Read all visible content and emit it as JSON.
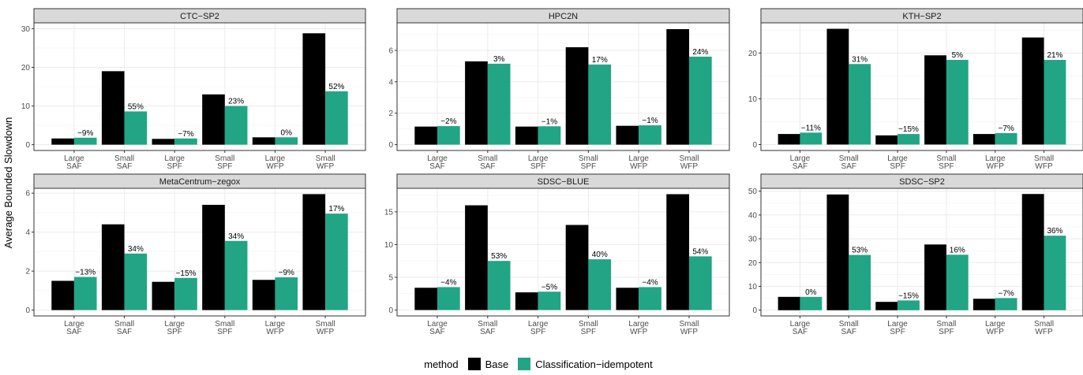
{
  "chart_data": {
    "type": "bar",
    "ylabel": "Average Bounded Slowdown",
    "categories": [
      "Large\nSAF",
      "Small\nSAF",
      "Large\nSPF",
      "Small\nSPF",
      "Large\nWFP",
      "Small\nWFP"
    ],
    "legend": {
      "title": "method",
      "position": "bottom",
      "series": [
        {
          "name": "Base",
          "color": "#000000"
        },
        {
          "name": "Classification−idempotent",
          "color": "#21a585"
        }
      ]
    },
    "grid": true,
    "panels": [
      {
        "title": "CTC−SP2",
        "ylim": [
          -1.5,
          31.5
        ],
        "yticks": [
          0,
          10,
          20,
          30
        ],
        "base": [
          1.6,
          19.0,
          1.5,
          13.0,
          1.9,
          28.8
        ],
        "classification": [
          1.8,
          8.6,
          1.6,
          10.0,
          1.9,
          13.8
        ],
        "labels": [
          "−9%",
          "55%",
          "−7%",
          "23%",
          "0%",
          "52%"
        ]
      },
      {
        "title": "HPC2N",
        "ylim": [
          -0.37,
          7.75
        ],
        "yticks": [
          0,
          2,
          4,
          6
        ],
        "base": [
          1.15,
          5.3,
          1.15,
          6.2,
          1.2,
          7.35
        ],
        "classification": [
          1.18,
          5.15,
          1.17,
          5.1,
          1.23,
          5.6
        ],
        "labels": [
          "−2%",
          "3%",
          "−1%",
          "17%",
          "−1%",
          "24%"
        ]
      },
      {
        "title": "KTH−SP2",
        "ylim": [
          -1.3,
          26.6
        ],
        "yticks": [
          0,
          10,
          20
        ],
        "base": [
          2.3,
          25.3,
          2.0,
          19.5,
          2.3,
          23.4
        ],
        "classification": [
          2.6,
          17.6,
          2.3,
          18.5,
          2.5,
          18.5
        ],
        "labels": [
          "−11%",
          "31%",
          "−15%",
          "5%",
          "−7%",
          "21%"
        ]
      },
      {
        "title": "MetaCentrum−zegox",
        "ylim": [
          -0.3,
          6.25
        ],
        "yticks": [
          0,
          2,
          4,
          6
        ],
        "base": [
          1.5,
          4.4,
          1.45,
          5.4,
          1.55,
          5.95
        ],
        "classification": [
          1.7,
          2.9,
          1.65,
          3.55,
          1.68,
          4.95
        ],
        "labels": [
          "−13%",
          "34%",
          "−15%",
          "34%",
          "−9%",
          "17%"
        ]
      },
      {
        "title": "SDSC−BLUE",
        "ylim": [
          -0.9,
          18.6
        ],
        "yticks": [
          0,
          5,
          10,
          15
        ],
        "base": [
          3.4,
          16.0,
          2.7,
          13.0,
          3.4,
          17.7
        ],
        "classification": [
          3.5,
          7.5,
          2.8,
          7.75,
          3.5,
          8.2
        ],
        "labels": [
          "−4%",
          "53%",
          "−5%",
          "40%",
          "−4%",
          "54%"
        ]
      },
      {
        "title": "SDSC−SP2",
        "ylim": [
          -2.4,
          51.2
        ],
        "yticks": [
          0,
          10,
          20,
          30,
          40,
          50
        ],
        "base": [
          5.6,
          48.6,
          3.5,
          27.6,
          4.8,
          48.8
        ],
        "classification": [
          5.6,
          23.2,
          4.1,
          23.3,
          5.1,
          31.3
        ],
        "labels": [
          "0%",
          "53%",
          "−15%",
          "16%",
          "−7%",
          "36%"
        ]
      }
    ]
  }
}
